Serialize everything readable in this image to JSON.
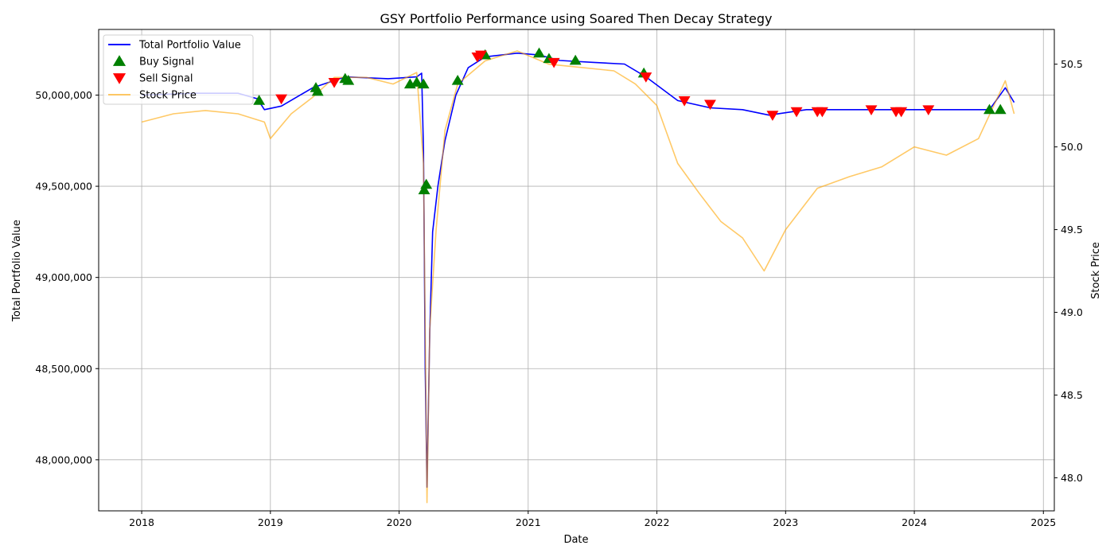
{
  "chart_data": {
    "type": "line",
    "title": "GSY Portfolio Performance using Soared Then Decay Strategy",
    "xlabel": "Date",
    "ylabel_left": "Total Portfolio Value",
    "ylabel_right": "Stock Price",
    "x_ticks": [
      "2018",
      "2019",
      "2020",
      "2021",
      "2022",
      "2023",
      "2024",
      "2025"
    ],
    "y_left_ticks": [
      "48,000,000",
      "48,500,000",
      "49,000,000",
      "49,500,000",
      "50,000,000"
    ],
    "y_right_ticks": [
      "48.0",
      "48.5",
      "49.0",
      "49.5",
      "50.0",
      "50.5"
    ],
    "xlim": [
      "2017-09-01",
      "2025-02-01"
    ],
    "ylim_left": [
      47720000,
      50360000
    ],
    "ylim_right": [
      47.8,
      50.71
    ],
    "grid": true,
    "legend_position": "top-left",
    "colors": {
      "portfolio": "#0000ff",
      "price": "#ffa500",
      "buy": "#008000",
      "sell": "#ff0000"
    },
    "series": [
      {
        "name": "Total Portfolio Value",
        "axis": "left",
        "points": [
          [
            "2018-01-01",
            50000000
          ],
          [
            "2018-06-01",
            50010000
          ],
          [
            "2018-10-01",
            50010000
          ],
          [
            "2018-11-25",
            49980000
          ],
          [
            "2018-12-15",
            49920000
          ],
          [
            "2019-02-01",
            49940000
          ],
          [
            "2019-05-01",
            50040000
          ],
          [
            "2019-08-01",
            50100000
          ],
          [
            "2019-12-01",
            50090000
          ],
          [
            "2020-02-20",
            50100000
          ],
          [
            "2020-03-05",
            50120000
          ],
          [
            "2020-03-10",
            49700000
          ],
          [
            "2020-03-15",
            48500000
          ],
          [
            "2020-03-20",
            47850000
          ],
          [
            "2020-03-28",
            48700000
          ],
          [
            "2020-04-05",
            49250000
          ],
          [
            "2020-04-20",
            49500000
          ],
          [
            "2020-05-10",
            49750000
          ],
          [
            "2020-06-10",
            50000000
          ],
          [
            "2020-07-15",
            50150000
          ],
          [
            "2020-09-01",
            50210000
          ],
          [
            "2020-12-01",
            50230000
          ],
          [
            "2021-02-01",
            50220000
          ],
          [
            "2021-04-01",
            50190000
          ],
          [
            "2021-07-01",
            50180000
          ],
          [
            "2021-10-01",
            50170000
          ],
          [
            "2021-12-01",
            50100000
          ],
          [
            "2022-03-01",
            49970000
          ],
          [
            "2022-06-01",
            49930000
          ],
          [
            "2022-09-01",
            49920000
          ],
          [
            "2022-11-15",
            49890000
          ],
          [
            "2023-03-01",
            49920000
          ],
          [
            "2023-09-01",
            49920000
          ],
          [
            "2024-03-01",
            49920000
          ],
          [
            "2024-08-01",
            49920000
          ],
          [
            "2024-09-15",
            50040000
          ],
          [
            "2024-10-10",
            49960000
          ]
        ]
      },
      {
        "name": "Stock Price",
        "axis": "right",
        "points": [
          [
            "2018-01-01",
            50.15
          ],
          [
            "2018-04-01",
            50.2
          ],
          [
            "2018-07-01",
            50.22
          ],
          [
            "2018-10-01",
            50.2
          ],
          [
            "2018-12-15",
            50.15
          ],
          [
            "2019-01-01",
            50.05
          ],
          [
            "2019-03-01",
            50.2
          ],
          [
            "2019-05-01",
            50.3
          ],
          [
            "2019-07-01",
            50.42
          ],
          [
            "2019-10-01",
            50.42
          ],
          [
            "2019-12-15",
            50.38
          ],
          [
            "2020-02-20",
            50.45
          ],
          [
            "2020-03-10",
            49.9
          ],
          [
            "2020-03-20",
            47.85
          ],
          [
            "2020-03-28",
            48.9
          ],
          [
            "2020-04-15",
            49.5
          ],
          [
            "2020-05-10",
            50.1
          ],
          [
            "2020-06-15",
            50.38
          ],
          [
            "2020-09-01",
            50.52
          ],
          [
            "2020-12-01",
            50.58
          ],
          [
            "2021-03-01",
            50.5
          ],
          [
            "2021-06-01",
            50.48
          ],
          [
            "2021-09-01",
            50.46
          ],
          [
            "2021-11-01",
            50.38
          ],
          [
            "2022-01-01",
            50.25
          ],
          [
            "2022-03-01",
            49.9
          ],
          [
            "2022-05-01",
            49.72
          ],
          [
            "2022-07-01",
            49.55
          ],
          [
            "2022-09-01",
            49.45
          ],
          [
            "2022-11-01",
            49.25
          ],
          [
            "2023-01-01",
            49.5
          ],
          [
            "2023-04-01",
            49.75
          ],
          [
            "2023-07-01",
            49.82
          ],
          [
            "2023-10-01",
            49.88
          ],
          [
            "2024-01-01",
            50.0
          ],
          [
            "2024-04-01",
            49.95
          ],
          [
            "2024-07-01",
            50.05
          ],
          [
            "2024-09-15",
            50.4
          ],
          [
            "2024-10-10",
            50.2
          ]
        ]
      },
      {
        "name": "Buy Signal",
        "axis": "left",
        "marker": "triangle-up",
        "points": [
          [
            "2018-11-30",
            49970000
          ],
          [
            "2019-05-10",
            50040000
          ],
          [
            "2019-05-15",
            50020000
          ],
          [
            "2019-08-01",
            50090000
          ],
          [
            "2019-08-10",
            50080000
          ],
          [
            "2020-02-01",
            50060000
          ],
          [
            "2020-02-20",
            50070000
          ],
          [
            "2020-03-10",
            50060000
          ],
          [
            "2020-03-12",
            49480000
          ],
          [
            "2020-03-18",
            49510000
          ],
          [
            "2020-06-15",
            50080000
          ],
          [
            "2020-09-01",
            50220000
          ],
          [
            "2021-02-01",
            50230000
          ],
          [
            "2021-03-01",
            50200000
          ],
          [
            "2021-05-15",
            50190000
          ],
          [
            "2021-11-25",
            50120000
          ],
          [
            "2024-08-01",
            49920000
          ],
          [
            "2024-09-01",
            49920000
          ]
        ]
      },
      {
        "name": "Sell Signal",
        "axis": "left",
        "marker": "triangle-down",
        "points": [
          [
            "2019-02-01",
            49980000
          ],
          [
            "2019-07-01",
            50070000
          ],
          [
            "2020-08-10",
            50210000
          ],
          [
            "2020-08-20",
            50220000
          ],
          [
            "2021-03-15",
            50180000
          ],
          [
            "2021-12-01",
            50100000
          ],
          [
            "2022-03-20",
            49970000
          ],
          [
            "2022-06-01",
            49950000
          ],
          [
            "2022-11-25",
            49890000
          ],
          [
            "2023-02-01",
            49910000
          ],
          [
            "2023-04-01",
            49910000
          ],
          [
            "2023-04-15",
            49910000
          ],
          [
            "2023-09-01",
            49920000
          ],
          [
            "2023-11-10",
            49910000
          ],
          [
            "2023-11-25",
            49910000
          ],
          [
            "2024-02-10",
            49920000
          ]
        ]
      }
    ]
  }
}
